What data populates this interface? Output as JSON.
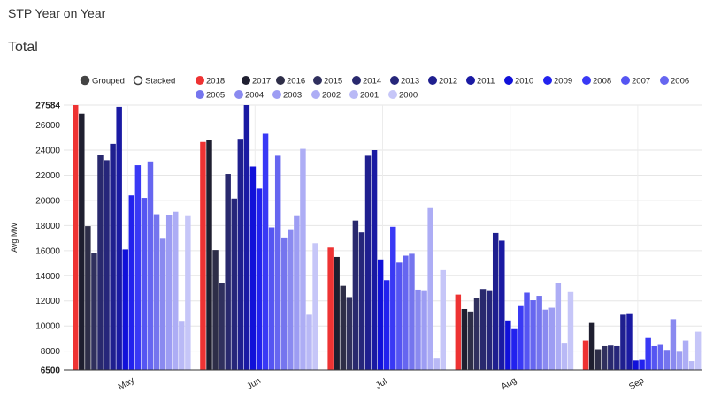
{
  "page": {
    "title": "STP Year on Year",
    "subtitle": "Total"
  },
  "controls": {
    "grouped_label": "Grouped",
    "stacked_label": "Stacked",
    "selected": "grouped"
  },
  "chart_data": {
    "type": "bar",
    "ylabel": "Avg MW",
    "ylim": [
      6500,
      27584
    ],
    "yticks": [
      6500,
      8000,
      10000,
      12000,
      14000,
      16000,
      18000,
      20000,
      22000,
      24000,
      26000,
      27584
    ],
    "categories": [
      "May",
      "Jun",
      "Jul",
      "Aug",
      "Sep"
    ],
    "legend_position": "top",
    "grid": true,
    "series": [
      {
        "name": "2018",
        "color": "#ee3333",
        "values": [
          27584,
          24650,
          16250,
          12500,
          8850
        ]
      },
      {
        "name": "2017",
        "color": "#1f1f30",
        "values": [
          26900,
          24800,
          15500,
          11350,
          10250
        ]
      },
      {
        "name": "2016",
        "color": "#2e2e48",
        "values": [
          17950,
          16050,
          13200,
          11150,
          8150
        ]
      },
      {
        "name": "2015",
        "color": "#30305e",
        "values": [
          15800,
          13400,
          12300,
          12250,
          8400
        ]
      },
      {
        "name": "2014",
        "color": "#29296e",
        "values": [
          23600,
          22100,
          18400,
          12950,
          8450
        ]
      },
      {
        "name": "2013",
        "color": "#26267a",
        "values": [
          23200,
          20150,
          17450,
          12850,
          8400
        ]
      },
      {
        "name": "2012",
        "color": "#1f1f8f",
        "values": [
          24500,
          24900,
          23550,
          17400,
          10900
        ]
      },
      {
        "name": "2011",
        "color": "#1a1aa3",
        "values": [
          27450,
          27584,
          24000,
          16800,
          10950
        ]
      },
      {
        "name": "2010",
        "color": "#1111d9",
        "values": [
          16100,
          22700,
          15300,
          10450,
          7250
        ]
      },
      {
        "name": "2009",
        "color": "#2222ee",
        "values": [
          20400,
          20950,
          13650,
          9750,
          7300
        ]
      },
      {
        "name": "2008",
        "color": "#3939f5",
        "values": [
          22800,
          25300,
          17900,
          11650,
          9050
        ]
      },
      {
        "name": "2007",
        "color": "#5555f2",
        "values": [
          20200,
          17850,
          15050,
          12650,
          8400
        ]
      },
      {
        "name": "2006",
        "color": "#6666f0",
        "values": [
          23100,
          23550,
          15600,
          12050,
          8500
        ]
      },
      {
        "name": "2005",
        "color": "#7575ee",
        "values": [
          18900,
          17050,
          15750,
          12400,
          8100
        ]
      },
      {
        "name": "2004",
        "color": "#8a8af0",
        "values": [
          16950,
          17700,
          12900,
          11300,
          10550
        ]
      },
      {
        "name": "2003",
        "color": "#9d9df3",
        "values": [
          18800,
          18750,
          12850,
          11450,
          7950
        ]
      },
      {
        "name": "2002",
        "color": "#adadf5",
        "values": [
          19100,
          24100,
          19450,
          13450,
          8850
        ]
      },
      {
        "name": "2001",
        "color": "#b9b9f6",
        "values": [
          10350,
          10900,
          7400,
          8600,
          7200
        ]
      },
      {
        "name": "2000",
        "color": "#c6c6f8",
        "values": [
          18750,
          16600,
          14450,
          12700,
          9550
        ]
      }
    ]
  }
}
